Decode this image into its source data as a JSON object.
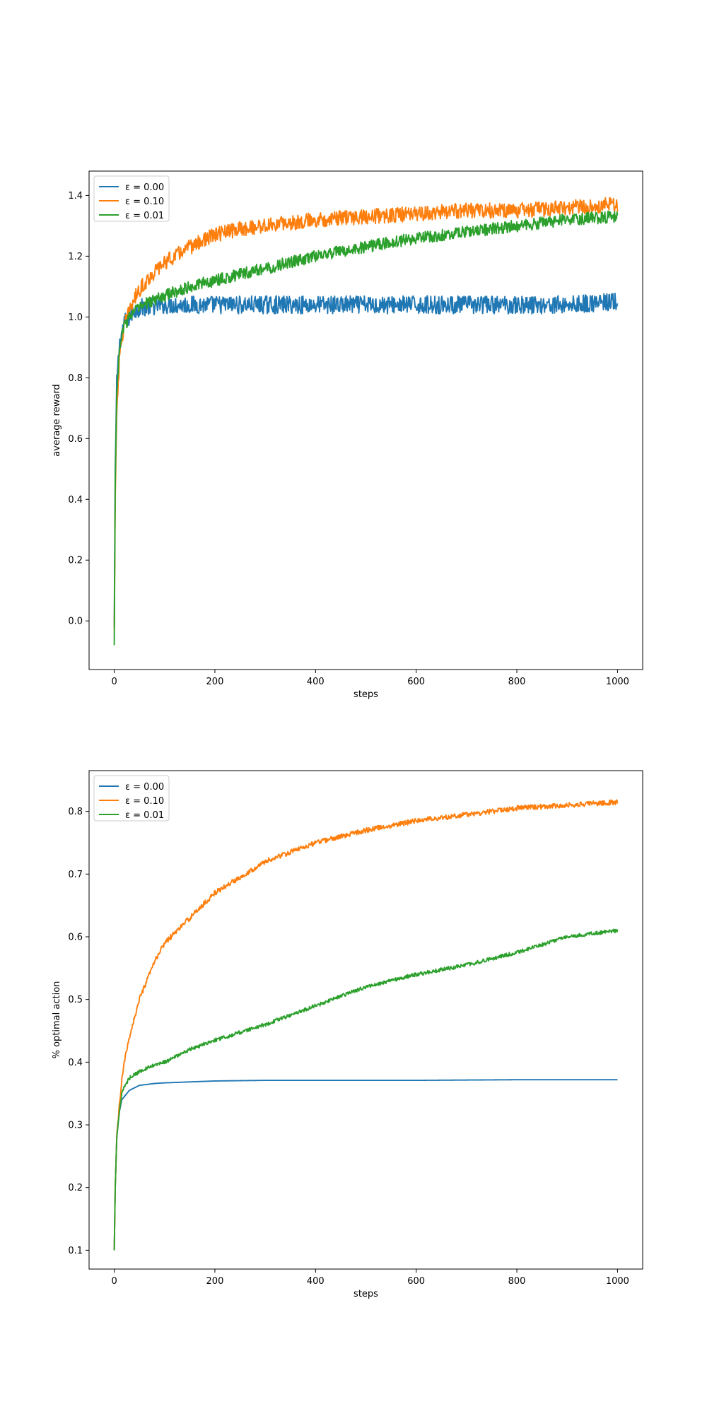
{
  "chart_data": [
    {
      "type": "line",
      "xlabel": "steps",
      "ylabel": "average reward",
      "xlim": [
        -50,
        1050
      ],
      "ylim": [
        -0.16,
        1.48
      ],
      "xticks": [
        0,
        200,
        400,
        600,
        800,
        1000
      ],
      "yticks": [
        0.0,
        0.2,
        0.4,
        0.6,
        0.8,
        1.0,
        1.2,
        1.4
      ],
      "ytick_labels": [
        "0.0",
        "0.2",
        "0.4",
        "0.6",
        "0.8",
        "1.0",
        "1.2",
        "1.4"
      ],
      "legend_position": "top-left",
      "grid": false,
      "series": [
        {
          "name": "ε = 0.00",
          "color": "#1f77b4",
          "x": [
            0,
            2,
            5,
            10,
            15,
            20,
            30,
            40,
            50,
            70,
            100,
            150,
            200,
            300,
            400,
            500,
            600,
            700,
            800,
            900,
            1000
          ],
          "values": [
            -0.02,
            0.5,
            0.78,
            0.9,
            0.95,
            0.98,
            1.0,
            1.02,
            1.03,
            1.035,
            1.04,
            1.04,
            1.04,
            1.04,
            1.04,
            1.04,
            1.04,
            1.04,
            1.04,
            1.04,
            1.05
          ],
          "noise": 0.03
        },
        {
          "name": "ε = 0.10",
          "color": "#ff7f0e",
          "x": [
            0,
            2,
            5,
            10,
            15,
            20,
            30,
            40,
            50,
            70,
            100,
            150,
            200,
            250,
            300,
            400,
            500,
            600,
            700,
            800,
            900,
            1000
          ],
          "values": [
            -0.03,
            0.4,
            0.7,
            0.85,
            0.93,
            0.97,
            1.02,
            1.06,
            1.09,
            1.13,
            1.18,
            1.23,
            1.27,
            1.29,
            1.3,
            1.32,
            1.33,
            1.34,
            1.35,
            1.35,
            1.36,
            1.37
          ],
          "noise": 0.025
        },
        {
          "name": "ε = 0.01",
          "color": "#2ca02c",
          "x": [
            0,
            2,
            5,
            10,
            15,
            20,
            30,
            40,
            50,
            70,
            100,
            150,
            200,
            300,
            400,
            500,
            600,
            700,
            800,
            900,
            1000
          ],
          "values": [
            -0.08,
            0.45,
            0.75,
            0.88,
            0.94,
            0.97,
            1.0,
            1.02,
            1.03,
            1.05,
            1.07,
            1.1,
            1.12,
            1.16,
            1.2,
            1.23,
            1.26,
            1.28,
            1.3,
            1.32,
            1.33
          ],
          "noise": 0.02
        }
      ]
    },
    {
      "type": "line",
      "xlabel": "steps",
      "ylabel": "% optimal action",
      "xlim": [
        -50,
        1050
      ],
      "ylim": [
        0.07,
        0.865
      ],
      "xticks": [
        0,
        200,
        400,
        600,
        800,
        1000
      ],
      "yticks": [
        0.1,
        0.2,
        0.3,
        0.4,
        0.5,
        0.6,
        0.7,
        0.8
      ],
      "ytick_labels": [
        "0.1",
        "0.2",
        "0.3",
        "0.4",
        "0.5",
        "0.6",
        "0.7",
        "0.8"
      ],
      "legend_position": "top-left",
      "grid": false,
      "series": [
        {
          "name": "ε = 0.00",
          "color": "#1f77b4",
          "x": [
            0,
            2,
            5,
            10,
            15,
            20,
            30,
            50,
            80,
            100,
            200,
            300,
            400,
            600,
            800,
            1000
          ],
          "values": [
            0.1,
            0.2,
            0.28,
            0.32,
            0.34,
            0.345,
            0.355,
            0.363,
            0.366,
            0.367,
            0.37,
            0.371,
            0.371,
            0.371,
            0.372,
            0.372
          ],
          "noise": 0.0
        },
        {
          "name": "ε = 0.10",
          "color": "#ff7f0e",
          "x": [
            0,
            2,
            5,
            10,
            15,
            20,
            30,
            50,
            80,
            100,
            150,
            200,
            300,
            400,
            500,
            600,
            700,
            800,
            900,
            1000
          ],
          "values": [
            0.1,
            0.2,
            0.28,
            0.33,
            0.37,
            0.4,
            0.44,
            0.5,
            0.56,
            0.59,
            0.63,
            0.67,
            0.72,
            0.75,
            0.77,
            0.785,
            0.795,
            0.805,
            0.81,
            0.815
          ],
          "noise": 0.004
        },
        {
          "name": "ε = 0.01",
          "color": "#2ca02c",
          "x": [
            0,
            2,
            5,
            10,
            15,
            20,
            30,
            50,
            80,
            100,
            150,
            200,
            300,
            400,
            500,
            600,
            700,
            800,
            900,
            1000
          ],
          "values": [
            0.1,
            0.2,
            0.28,
            0.32,
            0.35,
            0.36,
            0.375,
            0.385,
            0.395,
            0.4,
            0.42,
            0.435,
            0.46,
            0.49,
            0.52,
            0.54,
            0.555,
            0.575,
            0.6,
            0.61
          ],
          "noise": 0.003
        }
      ]
    }
  ]
}
